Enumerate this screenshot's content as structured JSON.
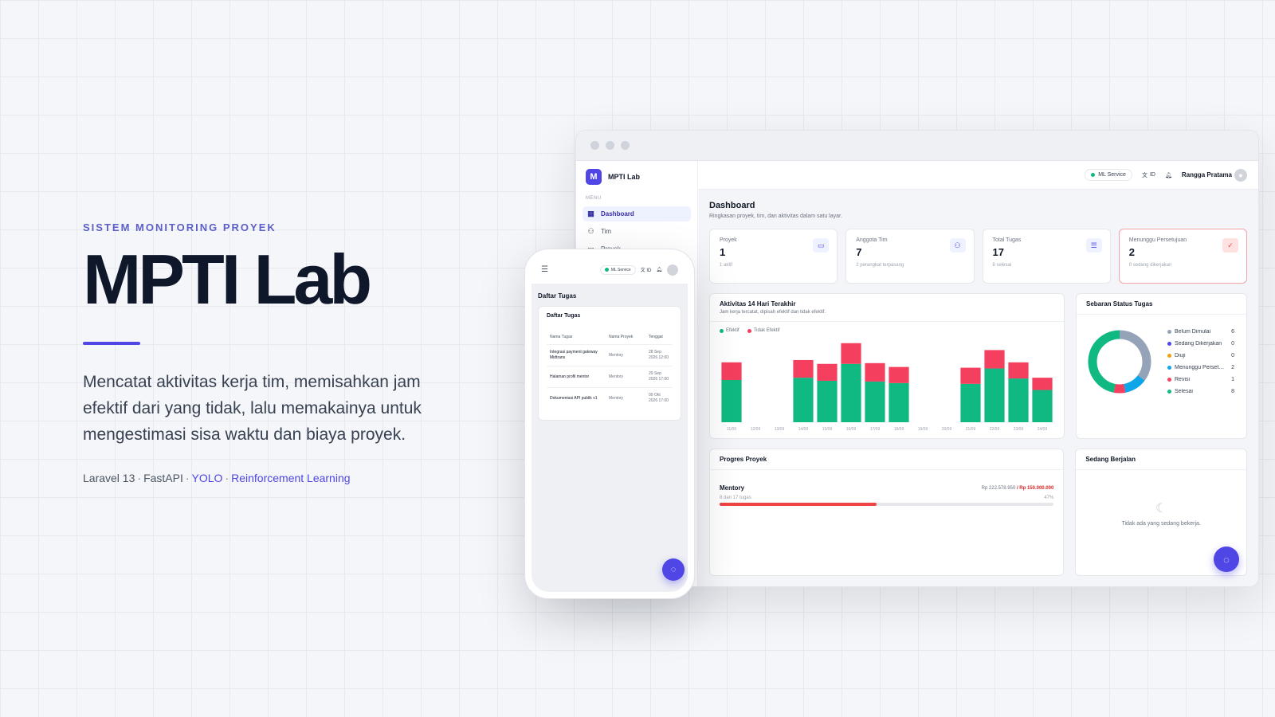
{
  "hero": {
    "eyebrow": "SISTEM MONITORING PROYEK",
    "title": "MPTI Lab",
    "description": "Mencatat aktivitas kerja tim, memisahkan jam efektif dari yang tidak, lalu memakainya untuk mengestimasi sisa waktu dan biaya proyek.",
    "tech": [
      "Laravel 13",
      "FastAPI",
      "YOLO",
      "Reinforcement Learning"
    ],
    "accent": "#4f46e5"
  },
  "app": {
    "brand": "MPTI Lab",
    "logo_letter": "M",
    "menu_label": "MENU",
    "nav": [
      {
        "label": "Dashboard",
        "icon": "grid-icon"
      },
      {
        "label": "Tim",
        "icon": "users-icon"
      },
      {
        "label": "Proyek",
        "icon": "folder-icon"
      }
    ],
    "topbar": {
      "ml_service": "ML Service",
      "language": "ID",
      "user": "Rangga Pratama"
    },
    "page_title": "Dashboard",
    "page_sub": "Ringkasan proyek, tim, dan aktivitas dalam satu layar.",
    "stats": [
      {
        "label": "Proyek",
        "value": "1",
        "sub": "1 aktif",
        "icon": "folder-icon"
      },
      {
        "label": "Anggota Tim",
        "value": "7",
        "sub": "2 perangkat terpasang",
        "icon": "users-icon"
      },
      {
        "label": "Total Tugas",
        "value": "17",
        "sub": "8 selesai",
        "icon": "list-icon"
      },
      {
        "label": "Menunggu Persetujuan",
        "value": "2",
        "sub": "0 sedang dikerjakan",
        "icon": "check-icon"
      }
    ],
    "activity": {
      "title": "Aktivitas 14 Hari Terakhir",
      "sub": "Jam kerja tercatat, dipisah efektif dan tidak efektif.",
      "legend": [
        "Efektif",
        "Tidak Efektif"
      ]
    },
    "status": {
      "title": "Sebaran Status Tugas",
      "items": [
        {
          "label": "Belum Dimulai",
          "value": 6,
          "color": "#94a3b8"
        },
        {
          "label": "Sedang Dikerjakan",
          "value": 0,
          "color": "#4f46e5"
        },
        {
          "label": "Diuji",
          "value": 0,
          "color": "#f59e0b"
        },
        {
          "label": "Menunggu Persetujuan",
          "value": 2,
          "color": "#0ea5e9"
        },
        {
          "label": "Revisi",
          "value": 1,
          "color": "#f43f5e"
        },
        {
          "label": "Selesai",
          "value": 8,
          "color": "#10b981"
        }
      ]
    },
    "progress": {
      "title": "Progres Proyek",
      "project": "Mentory",
      "spent": "Rp 222.578.950",
      "budget": "/ Rp 150.000.000",
      "tasks": "8 dari 17 tugas",
      "percent_label": "47%",
      "percent": 0.47
    },
    "running": {
      "title": "Sedang Berjalan",
      "empty": "Tidak ada yang sedang bekerja."
    }
  },
  "mobile": {
    "ml_service": "ML Service",
    "language": "ID",
    "page_title": "Daftar Tugas",
    "card_title": "Daftar Tugas",
    "columns": [
      "Nama Tugas",
      "Nama Proyek",
      "Tenggat"
    ],
    "rows": [
      {
        "task": "Integrasi payment gateway Midtrans",
        "project": "Mentory",
        "due": "28 Sep 2026 12:00"
      },
      {
        "task": "Halaman profil mentor",
        "project": "Mentory",
        "due": "29 Sep 2026 17:00"
      },
      {
        "task": "Dokumentasi API publik v1",
        "project": "Mentory",
        "due": "09 Okt 2026 17:00"
      }
    ]
  },
  "chart_data": {
    "type": "bar",
    "title": "Aktivitas 14 Hari Terakhir",
    "categories": [
      "11/09",
      "12/09",
      "13/09",
      "14/09",
      "15/09",
      "16/09",
      "17/09",
      "18/09",
      "19/09",
      "20/09",
      "21/09",
      "22/09",
      "23/09",
      "24/09"
    ],
    "stacked": true,
    "series": [
      {
        "name": "Efektif",
        "color": "#10b981",
        "values": [
          5.5,
          0,
          0,
          5.8,
          5.4,
          7.6,
          5.3,
          5.1,
          0,
          0,
          5.0,
          7.0,
          5.7,
          4.2
        ]
      },
      {
        "name": "Tidak Efektif",
        "color": "#f43f5e",
        "values": [
          2.3,
          0,
          0,
          2.3,
          2.2,
          2.7,
          2.4,
          2.1,
          0,
          0,
          2.1,
          2.4,
          2.1,
          1.6
        ]
      }
    ],
    "grid": false,
    "legend": "top-left"
  }
}
